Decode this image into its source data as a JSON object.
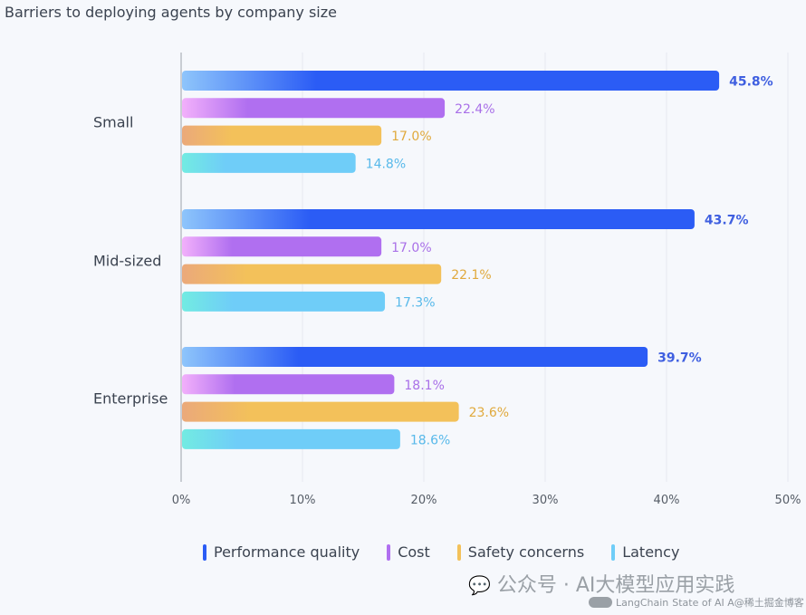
{
  "chart_data": {
    "type": "bar",
    "orientation": "horizontal",
    "title": "Barriers to deploying agents by company size",
    "categories": [
      "Small",
      "Mid-sized",
      "Enterprise"
    ],
    "series": [
      {
        "name": "Performance quality",
        "color": "#2b5cf5",
        "values": [
          45.8,
          43.7,
          39.7
        ]
      },
      {
        "name": "Cost",
        "color": "#b06ff0",
        "values": [
          22.4,
          17.0,
          18.1
        ]
      },
      {
        "name": "Safety concerns",
        "color": "#f3c15a",
        "values": [
          17.0,
          22.1,
          23.6
        ]
      },
      {
        "name": "Latency",
        "color": "#6fcdf8",
        "values": [
          14.8,
          17.3,
          18.6
        ]
      }
    ],
    "data_labels": [
      [
        "45.8%",
        "22.4%",
        "17.0%",
        "14.8%"
      ],
      [
        "43.7%",
        "17.0%",
        "22.1%",
        "17.3%"
      ],
      [
        "39.7%",
        "18.1%",
        "23.6%",
        "18.6%"
      ]
    ],
    "label_colors": [
      "#3f5fe0",
      "#a970e8",
      "#e0a93c",
      "#58b9ea"
    ],
    "gradient_starts": [
      "#8ec5fb",
      "#f2b0fb",
      "#eba97a",
      "#72ebe2"
    ],
    "xlabel": "",
    "ylabel": "",
    "xlim": [
      0,
      50
    ],
    "xticks": [
      "0%",
      "10%",
      "20%",
      "30%",
      "40%",
      "50%"
    ],
    "grid": true,
    "legend_position": "bottom"
  },
  "watermark": "公众号 · AI大模型应用实践",
  "footer": {
    "brand": "LangChain",
    "text": "State of AI A@稀土掘金博客"
  }
}
